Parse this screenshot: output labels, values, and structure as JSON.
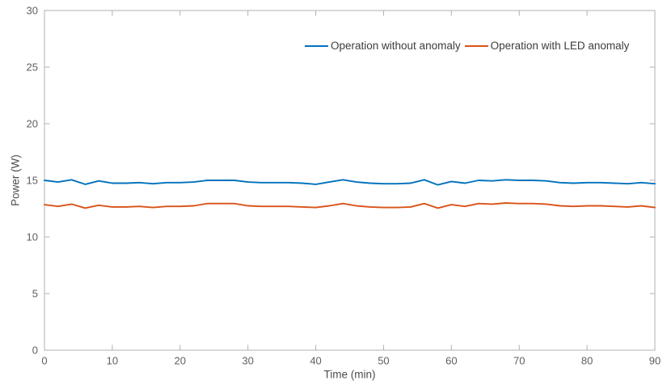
{
  "figure": {
    "background": "#ffffff"
  },
  "chart_data": {
    "type": "line",
    "title": "",
    "xlabel": "Time (min)",
    "ylabel": "Power (W)",
    "xlim": [
      0,
      90
    ],
    "ylim": [
      0,
      30
    ],
    "xticks": [
      0,
      10,
      20,
      30,
      40,
      50,
      60,
      70,
      80,
      90
    ],
    "yticks": [
      0,
      5,
      10,
      15,
      20,
      25,
      30
    ],
    "grid": false,
    "box": true,
    "tick_direction": "in",
    "axis_color": "#b0b0b0",
    "tick_label_color": "#5f5f5f",
    "axis_label_color": "#4d4d4d",
    "legend": {
      "orientation": "horizontal",
      "position": "top-inside-right",
      "box": false,
      "text_color": "#3d3d3d"
    },
    "x": [
      0,
      2,
      4,
      6,
      8,
      10,
      12,
      14,
      16,
      18,
      20,
      22,
      24,
      26,
      28,
      30,
      32,
      34,
      36,
      38,
      40,
      42,
      44,
      46,
      48,
      50,
      52,
      54,
      56,
      58,
      60,
      62,
      64,
      66,
      68,
      70,
      72,
      74,
      76,
      78,
      80,
      82,
      84,
      86,
      88,
      90
    ],
    "series": [
      {
        "name": "Operation without anomaly",
        "color": "#0072BD",
        "values": [
          15.0,
          14.85,
          15.05,
          14.65,
          14.95,
          14.75,
          14.75,
          14.8,
          14.7,
          14.8,
          14.8,
          14.85,
          15.0,
          15.0,
          15.0,
          14.85,
          14.8,
          14.8,
          14.8,
          14.75,
          14.65,
          14.85,
          15.05,
          14.85,
          14.75,
          14.7,
          14.7,
          14.75,
          15.05,
          14.6,
          14.9,
          14.75,
          15.0,
          14.95,
          15.05,
          15.0,
          15.0,
          14.95,
          14.8,
          14.75,
          14.8,
          14.8,
          14.75,
          14.7,
          14.8,
          14.7
        ]
      },
      {
        "name": "Operation with LED anomaly",
        "color": "#D95319",
        "values": [
          12.85,
          12.7,
          12.9,
          12.55,
          12.8,
          12.65,
          12.65,
          12.7,
          12.6,
          12.7,
          12.7,
          12.75,
          12.95,
          12.95,
          12.95,
          12.75,
          12.7,
          12.7,
          12.7,
          12.65,
          12.6,
          12.75,
          12.95,
          12.75,
          12.65,
          12.6,
          12.6,
          12.65,
          12.95,
          12.55,
          12.85,
          12.7,
          12.95,
          12.9,
          13.0,
          12.95,
          12.95,
          12.9,
          12.75,
          12.7,
          12.75,
          12.75,
          12.7,
          12.65,
          12.75,
          12.6
        ]
      }
    ]
  }
}
